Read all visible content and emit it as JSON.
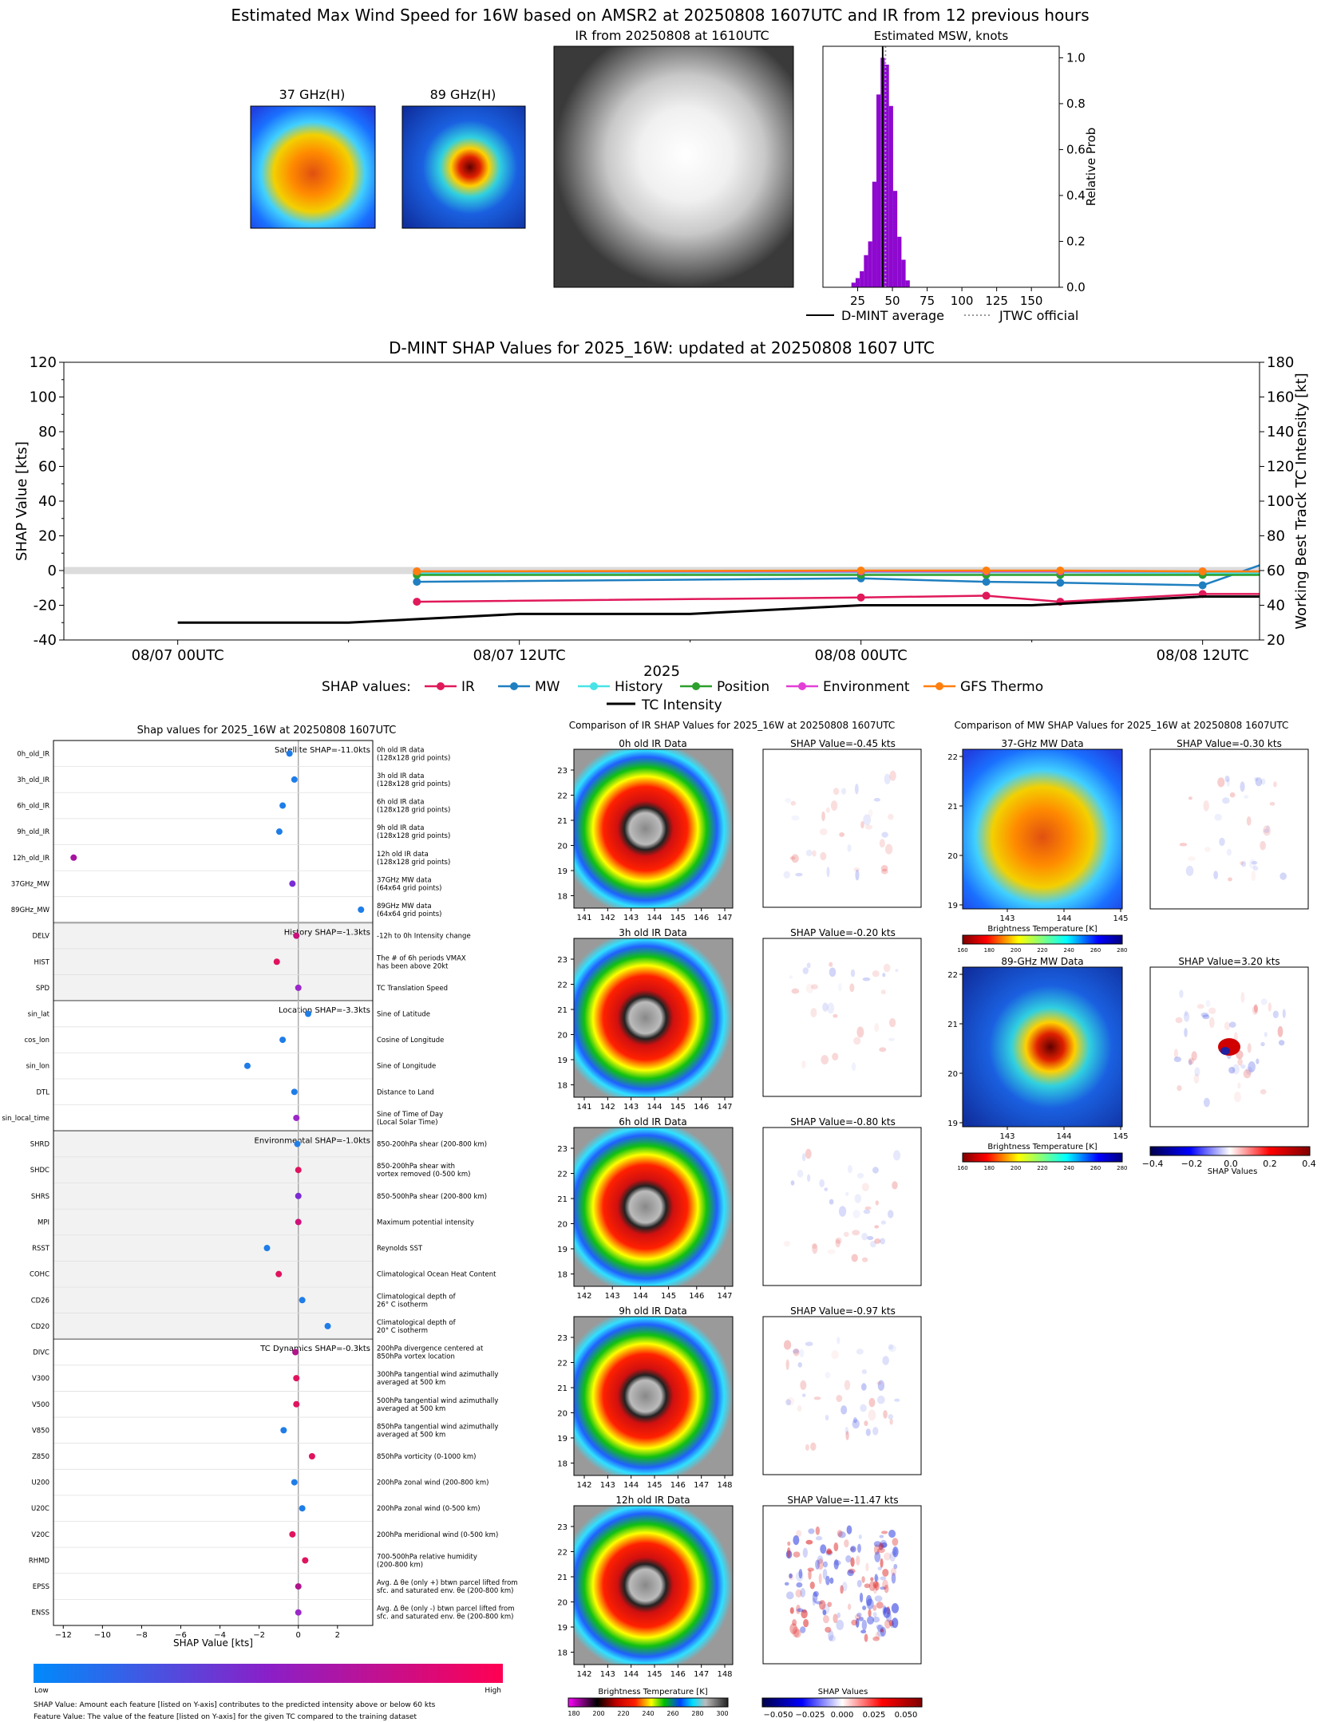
{
  "page_title": "Estimated Max Wind Speed for 16W based on AMSR2 at 20250808 1607UTC and IR from 12 previous hours",
  "top_panels": {
    "ghz37_title": "37 GHz(H)",
    "ghz89_title": "89 GHz(H)",
    "ir_title": "IR from 20250808 at 1610UTC",
    "msw_title": "Estimated MSW, knots"
  },
  "chart_data": [
    {
      "id": "msw_histogram",
      "type": "bar",
      "title": "Estimated MSW, knots",
      "ylabel": "Relative Prob",
      "xlim": [
        0,
        170
      ],
      "ylim": [
        0,
        1.05
      ],
      "xticks": [
        25,
        50,
        75,
        100,
        125,
        150
      ],
      "yticks": [
        0.0,
        0.2,
        0.4,
        0.6,
        0.8,
        1.0
      ],
      "x": [
        22,
        25,
        28,
        31,
        34,
        37,
        40,
        43,
        46,
        49,
        52,
        55,
        58,
        61
      ],
      "values": [
        0.02,
        0.04,
        0.07,
        0.14,
        0.2,
        0.46,
        0.84,
        1.0,
        0.97,
        0.79,
        0.42,
        0.22,
        0.12,
        0.03
      ],
      "dmint_average": 43,
      "jtwc_official": 45,
      "legend": [
        "D-MINT average",
        "JTWC official"
      ],
      "colors": {
        "bars": "#8e08cf",
        "average": "#000000",
        "official": "#9a9a9a"
      }
    },
    {
      "id": "shap_timeseries",
      "type": "line",
      "title": "D-MINT SHAP Values for 2025_16W: updated at 20250808 1607 UTC",
      "xlabel": "2025",
      "ylabel": "SHAP Value [kts]",
      "ylabel_right": "Working Best Track TC Intensity [kt]",
      "ylim": [
        -40,
        120
      ],
      "ylim_right": [
        20,
        180
      ],
      "xlim_hours": [
        -2,
        19
      ],
      "xticks": [
        {
          "h": 0,
          "label": "08/07 00UTC"
        },
        {
          "h": 6,
          "label": "08/07 12UTC"
        },
        {
          "h": 12,
          "label": "08/08 00UTC"
        },
        {
          "h": 18,
          "label": "08/08 12UTC"
        }
      ],
      "yticks": [
        -40,
        -20,
        0,
        20,
        40,
        60,
        80,
        100,
        120
      ],
      "yticks_right": [
        20,
        40,
        60,
        80,
        100,
        120,
        140,
        160,
        180
      ],
      "legend_prefix": "SHAP values:",
      "series": [
        {
          "name": "IR",
          "color": "#e0195a",
          "x": [
            4.2,
            12,
            14.2,
            15.5,
            18,
            19
          ],
          "values": [
            -18,
            -15.5,
            -14.5,
            -18,
            -13.5,
            -13.5
          ]
        },
        {
          "name": "MW",
          "color": "#1f7fc0",
          "x": [
            4.2,
            12,
            14.2,
            15.5,
            18,
            19
          ],
          "values": [
            -6.5,
            -4.5,
            -6.5,
            -7,
            -8.5,
            3
          ]
        },
        {
          "name": "History",
          "color": "#47e3e6",
          "x": [
            4.2,
            12,
            14.2,
            15.5,
            18,
            19
          ],
          "values": [
            -1.5,
            -1,
            -1,
            -1,
            -1.5,
            -1.5
          ]
        },
        {
          "name": "Position",
          "color": "#2ca02c",
          "x": [
            4.2,
            12,
            14.2,
            15.5,
            18,
            19
          ],
          "values": [
            -2.5,
            -2.5,
            -2.5,
            -2.5,
            -2.5,
            -2.5
          ]
        },
        {
          "name": "Environment",
          "color": "#e33fd6",
          "x": [
            4.2,
            12,
            14.2,
            15.5,
            18,
            19
          ],
          "values": [
            -0.5,
            -0.5,
            -0.5,
            -0.5,
            -0.5,
            -0.5
          ]
        },
        {
          "name": "GFS Thermo",
          "color": "#ff7f0e",
          "x": [
            4.2,
            12,
            14.2,
            15.5,
            18,
            19
          ],
          "values": [
            -0.5,
            0,
            0,
            0,
            -0.5,
            -0.5
          ]
        }
      ],
      "intensity": {
        "name": "TC Intensity",
        "x": [
          0,
          3,
          6,
          9,
          12,
          15,
          18,
          19
        ],
        "values": [
          30,
          30,
          35,
          35,
          40,
          40,
          45,
          45
        ]
      }
    },
    {
      "id": "shap_features",
      "type": "scatter",
      "title": "Shap values for 2025_16W at 20250808 1607UTC",
      "xlabel": "SHAP Value [kts]",
      "xlim": [
        -12.5,
        3.8
      ],
      "xticks": [
        -12,
        -10,
        -8,
        -6,
        -4,
        -2,
        0,
        2
      ],
      "colorbar": {
        "low": "Low",
        "high": "High"
      },
      "groups": [
        {
          "label": "Satellite SHAP=-11.0kts",
          "shaded": false,
          "features": [
            {
              "name": "0h_old_IR",
              "desc": [
                "0h old IR data",
                "(128x128 grid points)"
              ],
              "value": -0.45,
              "color": "#1e7de8"
            },
            {
              "name": "3h_old_IR",
              "desc": [
                "3h old IR data",
                "(128x128 grid points)"
              ],
              "value": -0.2,
              "color": "#1e7de8"
            },
            {
              "name": "6h_old_IR",
              "desc": [
                "6h old IR data",
                "(128x128 grid points)"
              ],
              "value": -0.8,
              "color": "#1e7de8"
            },
            {
              "name": "9h_old_IR",
              "desc": [
                "9h old IR data",
                "(128x128 grid points)"
              ],
              "value": -0.97,
              "color": "#1e7de8"
            },
            {
              "name": "12h_old_IR",
              "desc": [
                "12h old IR data",
                "(128x128 grid points)"
              ],
              "value": -11.47,
              "color": "#a514a0"
            },
            {
              "name": "37GHz_MW",
              "desc": [
                "37GHz MW data",
                "(64x64 grid points)"
              ],
              "value": -0.3,
              "color": "#7a2ad6"
            },
            {
              "name": "89GHz_MW",
              "desc": [
                "89GHz MW data",
                "(64x64 grid points)"
              ],
              "value": 3.2,
              "color": "#1e7de8"
            }
          ]
        },
        {
          "label": "History SHAP=-1.3kts",
          "shaded": true,
          "features": [
            {
              "name": "DELV",
              "desc": [
                "-12h to 0h Intensity change"
              ],
              "value": -0.1,
              "color": "#c8107a"
            },
            {
              "name": "HIST",
              "desc": [
                "The # of 6h periods VMAX",
                "has been above 20kt"
              ],
              "value": -1.1,
              "color": "#e0135f"
            },
            {
              "name": "SPD",
              "desc": [
                "TC Translation Speed"
              ],
              "value": 0.0,
              "color": "#9b27c9"
            }
          ]
        },
        {
          "label": "Location SHAP=-3.3kts",
          "shaded": false,
          "features": [
            {
              "name": "sin_lat",
              "desc": [
                "Sine of Latitude"
              ],
              "value": 0.5,
              "color": "#1e7de8"
            },
            {
              "name": "cos_lon",
              "desc": [
                "Cosine of Longitude"
              ],
              "value": -0.8,
              "color": "#1e7de8"
            },
            {
              "name": "sin_lon",
              "desc": [
                "Sine of Longitude"
              ],
              "value": -2.6,
              "color": "#1e7de8"
            },
            {
              "name": "DTL",
              "desc": [
                "Distance to Land"
              ],
              "value": -0.2,
              "color": "#1e7de8"
            },
            {
              "name": "sin_local_time",
              "desc": [
                "Sine of Time of Day",
                "(Local Solar Time)"
              ],
              "value": -0.1,
              "color": "#9b27c9"
            }
          ]
        },
        {
          "label": "Environmental SHAP=-1.0kts",
          "shaded": true,
          "features": [
            {
              "name": "SHRD",
              "desc": [
                "850-200hPa shear (200-800 km)"
              ],
              "value": -0.05,
              "color": "#1e7de8"
            },
            {
              "name": "SHDC",
              "desc": [
                "850-200hPa shear with",
                "vortex removed (0-500 km)"
              ],
              "value": 0.0,
              "color": "#e0135f"
            },
            {
              "name": "SHRS",
              "desc": [
                "850-500hPa shear (200-800 km)"
              ],
              "value": 0.0,
              "color": "#7a2ad6"
            },
            {
              "name": "MPI",
              "desc": [
                "Maximum potential intensity"
              ],
              "value": 0.0,
              "color": "#d0117a"
            },
            {
              "name": "RSST",
              "desc": [
                "Reynolds SST"
              ],
              "value": -1.6,
              "color": "#1e7de8"
            },
            {
              "name": "COHC",
              "desc": [
                "Climatological Ocean Heat Content"
              ],
              "value": -1.0,
              "color": "#e0135f"
            },
            {
              "name": "CD26",
              "desc": [
                "Climatological depth of",
                "26° C isotherm"
              ],
              "value": 0.2,
              "color": "#1e7de8"
            },
            {
              "name": "CD20",
              "desc": [
                "Climatological depth of",
                "20° C isotherm"
              ],
              "value": 1.5,
              "color": "#1e7de8"
            }
          ]
        },
        {
          "label": "TC Dynamics SHAP=-0.3kts",
          "shaded": false,
          "features": [
            {
              "name": "DIVC",
              "desc": [
                "200hPa divergence centered at",
                "850hPa vortex location"
              ],
              "value": -0.15,
              "color": "#b0138a"
            },
            {
              "name": "V300",
              "desc": [
                "300hPa tangential wind azimuthally",
                "averaged at 500 km"
              ],
              "value": -0.1,
              "color": "#e0135f"
            },
            {
              "name": "V500",
              "desc": [
                "500hPa tangential wind azimuthally",
                "averaged at 500 km"
              ],
              "value": -0.1,
              "color": "#e0135f"
            },
            {
              "name": "V850",
              "desc": [
                "850hPa tangential wind azimuthally",
                "averaged at 500 km"
              ],
              "value": -0.75,
              "color": "#1e7de8"
            },
            {
              "name": "Z850",
              "desc": [
                "850hPa vorticity (0-1000 km)"
              ],
              "value": 0.7,
              "color": "#e0135f"
            },
            {
              "name": "U200",
              "desc": [
                "200hPa zonal wind (200-800 km)"
              ],
              "value": -0.2,
              "color": "#1e7de8"
            },
            {
              "name": "U20C",
              "desc": [
                "200hPa zonal wind (0-500 km)"
              ],
              "value": 0.2,
              "color": "#1e7de8"
            },
            {
              "name": "V20C",
              "desc": [
                "200hPa meridional wind (0-500 km)"
              ],
              "value": -0.3,
              "color": "#e0135f"
            },
            {
              "name": "RHMD",
              "desc": [
                "700-500hPa relative humidity",
                "(200-800 km)"
              ],
              "value": 0.35,
              "color": "#e0135f"
            },
            {
              "name": "EPSS",
              "desc": [
                "Avg. Δ θe (only +) btwn parcel lifted from",
                "sfc. and saturated env. θe (200-800 km)"
              ],
              "value": 0.0,
              "color": "#b0138a"
            },
            {
              "name": "ENSS",
              "desc": [
                "Avg. Δ θe (only -) btwn parcel lifted from",
                "sfc. and saturated env. θe (200-800 km)"
              ],
              "value": 0.0,
              "color": "#9b27c9"
            }
          ]
        }
      ]
    }
  ],
  "ir_comparison": {
    "title": "Comparison of IR SHAP Values for 2025_16W at 20250808 1607UTC",
    "rows": [
      {
        "label": "0h old IR Data",
        "shap": "SHAP Value=-0.45 kts",
        "yticks": [
          "23",
          "22",
          "21",
          "20",
          "19",
          "18"
        ],
        "xticks": [
          "141",
          "142",
          "143",
          "144",
          "145",
          "146",
          "147"
        ]
      },
      {
        "label": "3h old IR Data",
        "shap": "SHAP Value=-0.20 kts",
        "yticks": [
          "23",
          "22",
          "21",
          "20",
          "19",
          "18"
        ],
        "xticks": [
          "141",
          "142",
          "143",
          "144",
          "145",
          "146",
          "147"
        ]
      },
      {
        "label": "6h old IR Data",
        "shap": "SHAP Value=-0.80 kts",
        "yticks": [
          "23",
          "22",
          "21",
          "20",
          "19",
          "18"
        ],
        "xticks": [
          "142",
          "143",
          "144",
          "145",
          "146",
          "147"
        ]
      },
      {
        "label": "9h old IR Data",
        "shap": "SHAP Value=-0.97 kts",
        "yticks": [
          "23",
          "22",
          "21",
          "20",
          "19",
          "18"
        ],
        "xticks": [
          "142",
          "143",
          "144",
          "145",
          "146",
          "147",
          "148"
        ]
      },
      {
        "label": "12h old IR Data",
        "shap": "SHAP Value=-11.47 kts",
        "yticks": [
          "23",
          "22",
          "21",
          "20",
          "19",
          "18"
        ],
        "xticks": [
          "142",
          "143",
          "144",
          "145",
          "146",
          "147",
          "148"
        ]
      }
    ],
    "bt_label": "Brightness Temperature [K]",
    "bt_ticks": [
      "180",
      "200",
      "220",
      "240",
      "260",
      "280",
      "300"
    ],
    "shap_label": "SHAP Values",
    "shap_ticks": [
      "−0.050",
      "−0.025",
      "0.000",
      "0.025",
      "0.050"
    ]
  },
  "mw_comparison": {
    "title": "Comparison of MW SHAP Values for 2025_16W at 20250808 1607UTC",
    "rows": [
      {
        "label": "37-GHz MW Data",
        "shap": "SHAP Value=-0.30 kts"
      },
      {
        "label": "89-GHz MW Data",
        "shap": "SHAP Value=3.20 kts"
      }
    ],
    "yticks": [
      "22",
      "21",
      "20",
      "19"
    ],
    "xticks": [
      "143",
      "144",
      "145"
    ],
    "bt_label": "Brightness Temperature [K]",
    "bt_ticks": [
      "160",
      "180",
      "200",
      "220",
      "240",
      "260",
      "280"
    ],
    "shap_label": "SHAP Values",
    "shap_ticks": [
      "−0.4",
      "−0.2",
      "0.0",
      "0.2",
      "0.4"
    ]
  },
  "footnotes": {
    "line1": "SHAP Value: Amount each feature [listed on Y-axis] contributes to the predicted intensity above or below 60 kts",
    "line2": "Feature Value: The value of the feature [listed on Y-axis] for the given TC compared to the training dataset"
  }
}
